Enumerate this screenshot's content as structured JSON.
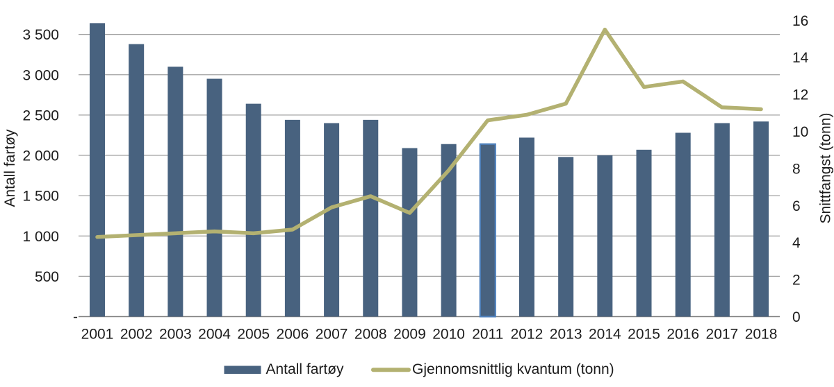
{
  "chart_data": {
    "type": "bar",
    "combo": "bar-line-dual-axis",
    "categories": [
      "2001",
      "2002",
      "2003",
      "2004",
      "2005",
      "2006",
      "2007",
      "2008",
      "2009",
      "2010",
      "2011",
      "2012",
      "2013",
      "2014",
      "2015",
      "2016",
      "2017",
      "2018"
    ],
    "series": [
      {
        "name": "Antall fartøy",
        "type": "bar",
        "axis": "left",
        "color": "#48627f",
        "values": [
          3640,
          3380,
          3100,
          2950,
          2640,
          2440,
          2400,
          2440,
          2090,
          2140,
          2140,
          2220,
          1980,
          2000,
          2070,
          2280,
          2400,
          2420
        ]
      },
      {
        "name": "Gjennomsnittlig kvantum (tonn)",
        "type": "line",
        "axis": "right",
        "color": "#b3b171",
        "values": [
          4.3,
          4.4,
          4.5,
          4.6,
          4.5,
          4.7,
          5.9,
          6.5,
          5.6,
          7.9,
          10.6,
          10.9,
          11.5,
          15.5,
          12.4,
          12.7,
          11.3,
          11.2
        ]
      }
    ],
    "highlight": {
      "category": "2011",
      "border_color": "#4f81bd"
    },
    "left_axis": {
      "label": "Antall fartøy",
      "tick_values": [
        0,
        500,
        1000,
        1500,
        2000,
        2500,
        3000,
        3500
      ],
      "tick_labels": [
        "-",
        "500",
        "1 000",
        "1 500",
        "2 000",
        "2 500",
        "3 000",
        "3 500"
      ],
      "range": [
        0,
        3750
      ]
    },
    "right_axis": {
      "label": "Snittfangst (tonn)",
      "tick_values": [
        0,
        2,
        4,
        6,
        8,
        10,
        12,
        14,
        16
      ],
      "tick_labels": [
        "0",
        "2",
        "4",
        "6",
        "8",
        "10",
        "12",
        "14",
        "16"
      ],
      "range": [
        0,
        16.3
      ]
    },
    "grid": true,
    "legend_position": "bottom"
  },
  "style": {
    "background": "#ffffff",
    "grid_color": "#a0a0a0",
    "axis_line_color": "#808080",
    "text_color": "#1c1c1c"
  }
}
